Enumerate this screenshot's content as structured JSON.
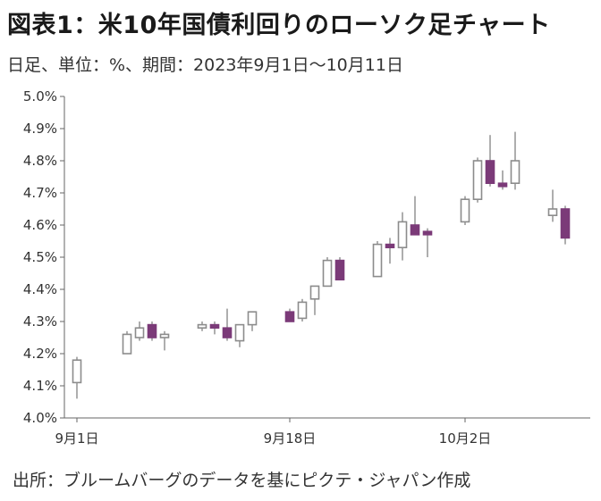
{
  "header": {
    "title": "図表1：米10年国債利回りのローソク足チャート",
    "subtitle": "日足、単位：%、期間：2023年9月1日～10月11日"
  },
  "footer": {
    "source": "出所：ブルームバーグのデータを基にピクテ・ジャパン作成"
  },
  "colors": {
    "up_fill": "#ffffff",
    "up_stroke": "#8c8c8c",
    "down_fill": "#7b3a78",
    "down_stroke": "#7b3a78",
    "wick": "#8c8c8c",
    "axis": "#666666"
  },
  "chart_data": {
    "type": "candlestick",
    "ylim": [
      4.0,
      5.0
    ],
    "yticks": [
      4.0,
      4.1,
      4.2,
      4.3,
      4.4,
      4.5,
      4.6,
      4.7,
      4.8,
      4.9,
      5.0
    ],
    "ytick_labels": [
      "4.0%",
      "4.1%",
      "4.2%",
      "4.3%",
      "4.4%",
      "4.5%",
      "4.6%",
      "4.7%",
      "4.8%",
      "4.9%",
      "5.0%"
    ],
    "xtick_labels": [
      {
        "date": "2023-09-01",
        "label": "9月1日"
      },
      {
        "date": "2023-09-18",
        "label": "9月18日"
      },
      {
        "date": "2023-10-02",
        "label": "10月2日"
      }
    ],
    "xlim": [
      "2023-08-31",
      "2023-10-12"
    ],
    "grid": false,
    "candles": [
      {
        "date": "2023-09-01",
        "open": 4.11,
        "high": 4.19,
        "low": 4.06,
        "close": 4.18
      },
      {
        "date": "2023-09-05",
        "open": 4.2,
        "high": 4.27,
        "low": 4.2,
        "close": 4.26
      },
      {
        "date": "2023-09-06",
        "open": 4.25,
        "high": 4.3,
        "low": 4.24,
        "close": 4.28
      },
      {
        "date": "2023-09-07",
        "open": 4.29,
        "high": 4.3,
        "low": 4.24,
        "close": 4.25
      },
      {
        "date": "2023-09-08",
        "open": 4.25,
        "high": 4.27,
        "low": 4.21,
        "close": 4.26
      },
      {
        "date": "2023-09-11",
        "open": 4.28,
        "high": 4.3,
        "low": 4.27,
        "close": 4.29
      },
      {
        "date": "2023-09-12",
        "open": 4.29,
        "high": 4.3,
        "low": 4.26,
        "close": 4.28
      },
      {
        "date": "2023-09-13",
        "open": 4.28,
        "high": 4.34,
        "low": 4.24,
        "close": 4.25
      },
      {
        "date": "2023-09-14",
        "open": 4.24,
        "high": 4.29,
        "low": 4.22,
        "close": 4.29
      },
      {
        "date": "2023-09-15",
        "open": 4.29,
        "high": 4.33,
        "low": 4.27,
        "close": 4.33
      },
      {
        "date": "2023-09-18",
        "open": 4.33,
        "high": 4.34,
        "low": 4.3,
        "close": 4.3
      },
      {
        "date": "2023-09-19",
        "open": 4.31,
        "high": 4.37,
        "low": 4.3,
        "close": 4.36
      },
      {
        "date": "2023-09-20",
        "open": 4.37,
        "high": 4.41,
        "low": 4.32,
        "close": 4.41
      },
      {
        "date": "2023-09-21",
        "open": 4.41,
        "high": 4.5,
        "low": 4.41,
        "close": 4.49
      },
      {
        "date": "2023-09-22",
        "open": 4.49,
        "high": 4.5,
        "low": 4.43,
        "close": 4.43
      },
      {
        "date": "2023-09-25",
        "open": 4.44,
        "high": 4.55,
        "low": 4.44,
        "close": 4.54
      },
      {
        "date": "2023-09-26",
        "open": 4.54,
        "high": 4.56,
        "low": 4.48,
        "close": 4.53
      },
      {
        "date": "2023-09-27",
        "open": 4.53,
        "high": 4.64,
        "low": 4.49,
        "close": 4.61
      },
      {
        "date": "2023-09-28",
        "open": 4.6,
        "high": 4.69,
        "low": 4.57,
        "close": 4.57
      },
      {
        "date": "2023-09-29",
        "open": 4.58,
        "high": 4.59,
        "low": 4.5,
        "close": 4.57
      },
      {
        "date": "2023-10-02",
        "open": 4.61,
        "high": 4.69,
        "low": 4.6,
        "close": 4.68
      },
      {
        "date": "2023-10-03",
        "open": 4.68,
        "high": 4.81,
        "low": 4.67,
        "close": 4.8
      },
      {
        "date": "2023-10-04",
        "open": 4.8,
        "high": 4.88,
        "low": 4.72,
        "close": 4.73
      },
      {
        "date": "2023-10-05",
        "open": 4.73,
        "high": 4.77,
        "low": 4.71,
        "close": 4.72
      },
      {
        "date": "2023-10-06",
        "open": 4.73,
        "high": 4.89,
        "low": 4.71,
        "close": 4.8
      },
      {
        "date": "2023-10-09",
        "open": 4.63,
        "high": 4.71,
        "low": 4.61,
        "close": 4.65
      },
      {
        "date": "2023-10-10",
        "open": 4.65,
        "high": 4.66,
        "low": 4.54,
        "close": 4.56
      }
    ]
  }
}
